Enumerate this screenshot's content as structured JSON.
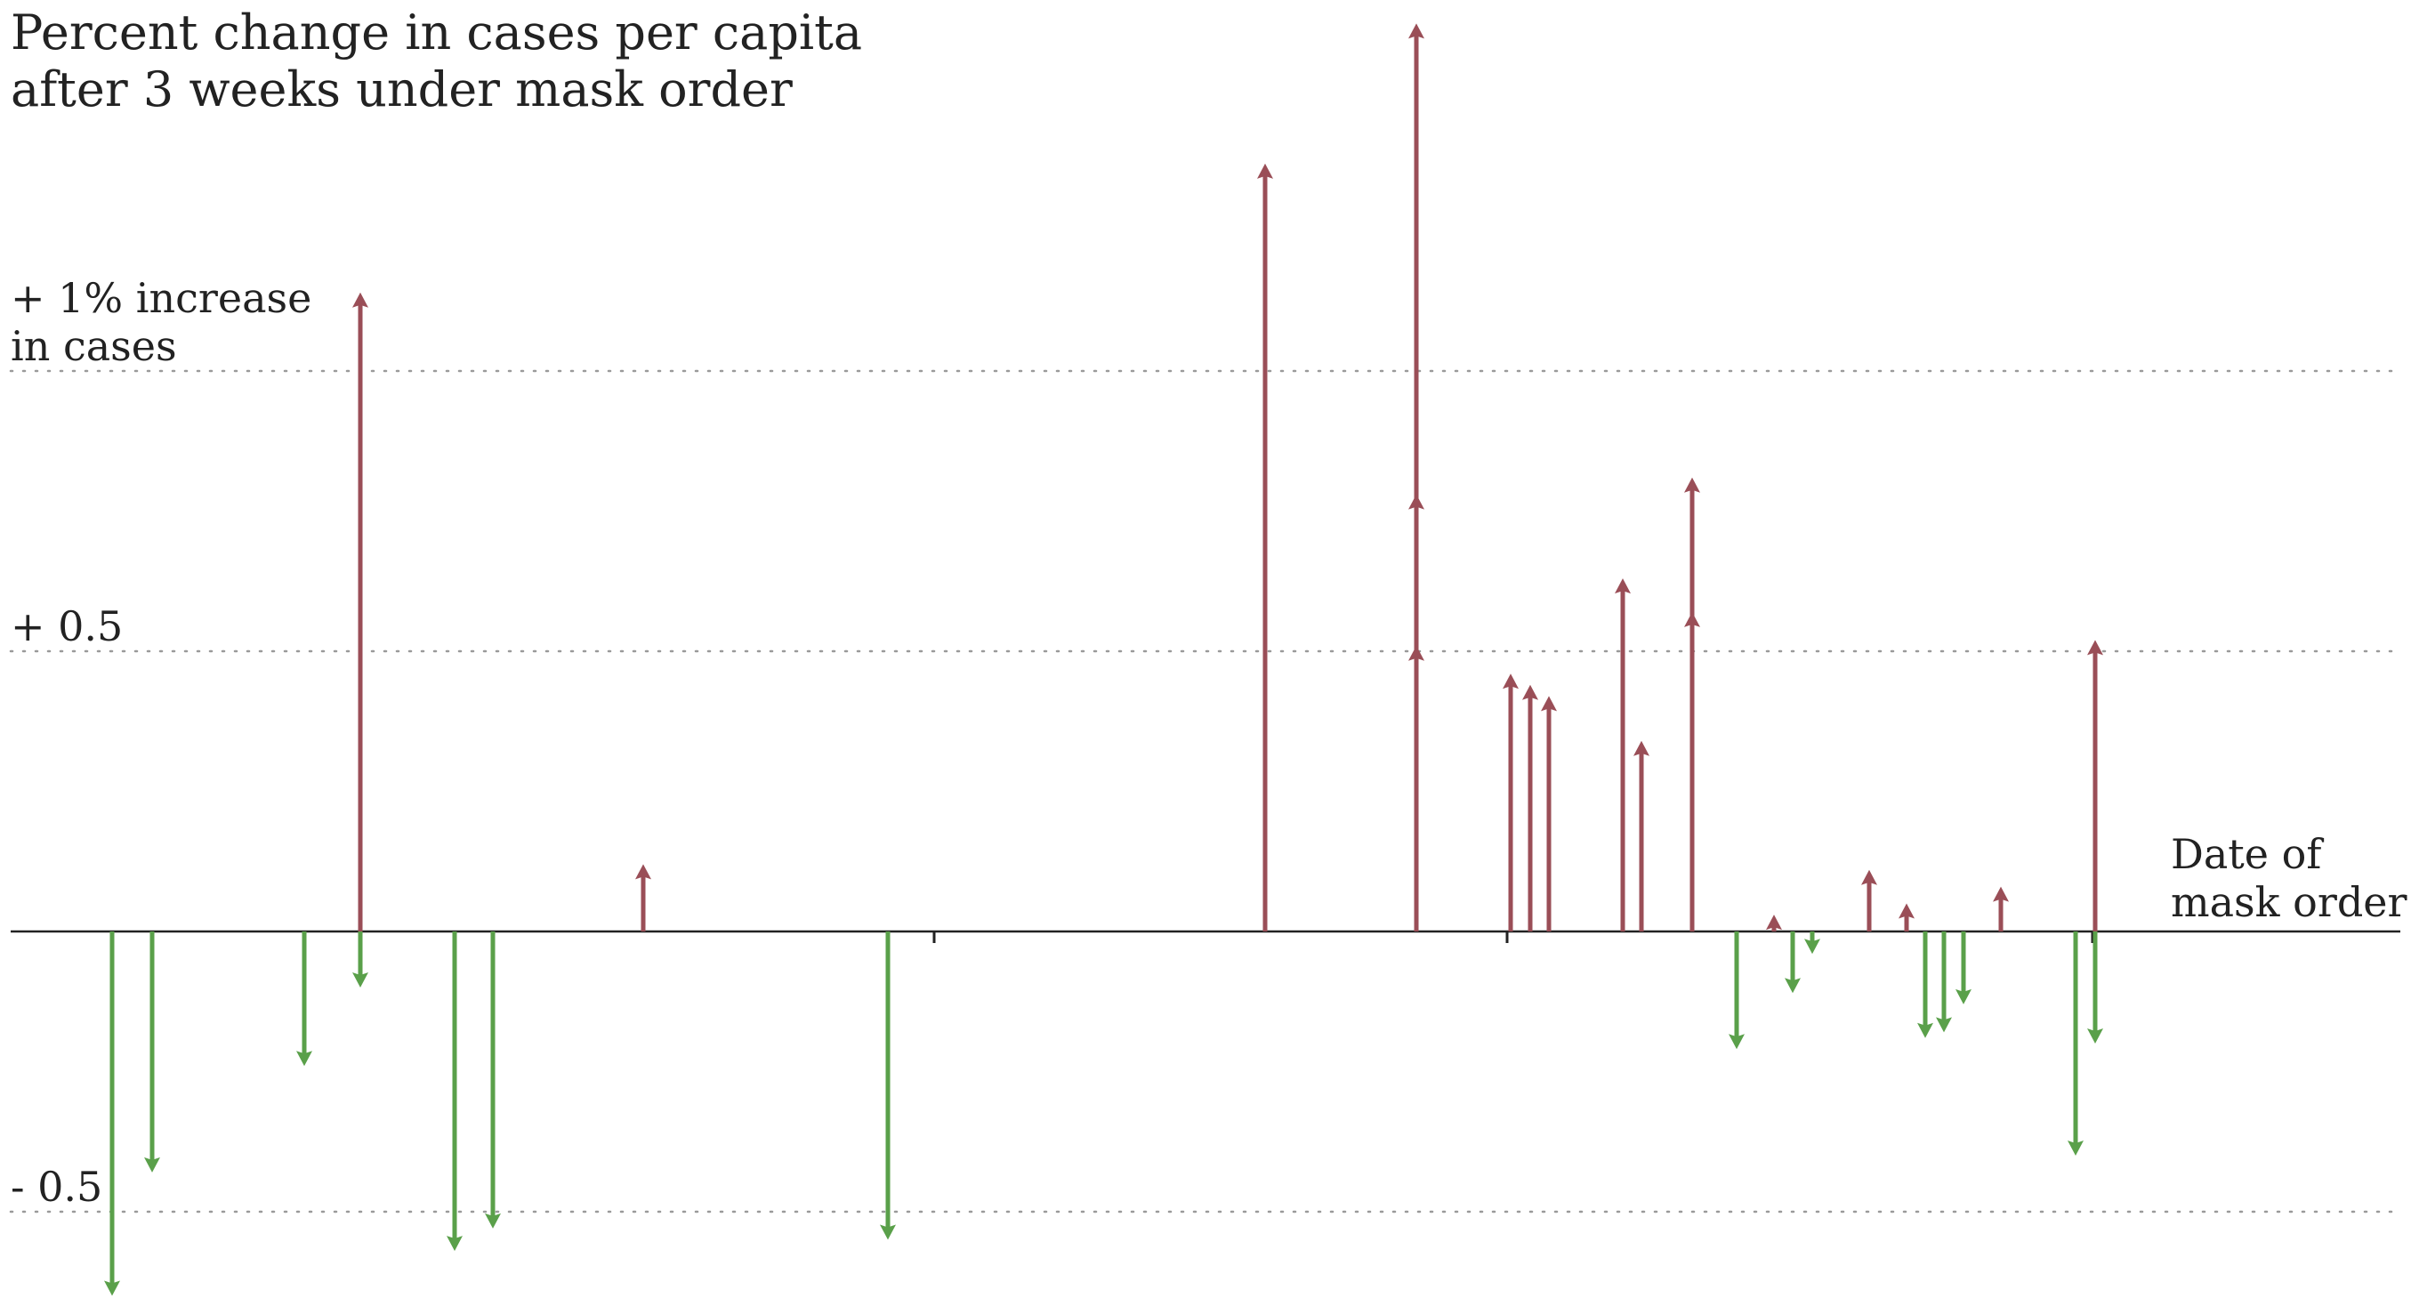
{
  "chart_data": {
    "type": "arrow",
    "title": [
      "Percent change in cases per capita",
      "after 3 weeks under mask order"
    ],
    "baseline_label": [
      "Date of",
      "mask order"
    ],
    "y_gridlines": [
      {
        "value": 1.0,
        "label": [
          "+ 1% increase",
          "in cases"
        ]
      },
      {
        "value": 0.5,
        "label": [
          "+ 0.5"
        ]
      },
      {
        "value": -0.5,
        "label": [
          "- 0.5"
        ]
      }
    ],
    "ylim": [
      -0.62,
      1.62
    ],
    "x_range": [
      0,
      2710
    ],
    "x_ticks": [
      405,
      1050,
      1694,
      2352
    ],
    "increase_color": "#9a4e57",
    "decrease_color": "#5aa04a",
    "arrows": [
      {
        "x": 126,
        "y0": 0,
        "y1": -0.65
      },
      {
        "x": 171,
        "y0": 0,
        "y1": -0.43
      },
      {
        "x": 342,
        "y0": 0,
        "y1": -0.24
      },
      {
        "x": 405,
        "y0": 0,
        "y1": 1.14
      },
      {
        "x": 405,
        "y0": 0,
        "y1": -0.1
      },
      {
        "x": 511,
        "y0": 0,
        "y1": -0.57
      },
      {
        "x": 554,
        "y0": 0,
        "y1": -0.53
      },
      {
        "x": 723,
        "y0": 0,
        "y1": 0.12
      },
      {
        "x": 998,
        "y0": 0,
        "y1": -0.55
      },
      {
        "x": 1422,
        "y0": 0,
        "y1": 1.37
      },
      {
        "x": 1592,
        "y0": 0,
        "y1": 1.62
      },
      {
        "x": 1592,
        "y0": 0,
        "y1": 0.78
      },
      {
        "x": 1592,
        "y0": 0,
        "y1": 0.51
      },
      {
        "x": 1698,
        "y0": 0,
        "y1": 0.46
      },
      {
        "x": 1720,
        "y0": 0,
        "y1": 0.44
      },
      {
        "x": 1741,
        "y0": 0,
        "y1": 0.42
      },
      {
        "x": 1824,
        "y0": 0,
        "y1": 0.63
      },
      {
        "x": 1845,
        "y0": 0,
        "y1": 0.34
      },
      {
        "x": 1902,
        "y0": 0,
        "y1": 0.81
      },
      {
        "x": 1902,
        "y0": 0,
        "y1": 0.57
      },
      {
        "x": 1952,
        "y0": 0,
        "y1": -0.21
      },
      {
        "x": 1994,
        "y0": 0,
        "y1": 0.03
      },
      {
        "x": 2015,
        "y0": 0,
        "y1": -0.11
      },
      {
        "x": 2037,
        "y0": 0,
        "y1": -0.04
      },
      {
        "x": 2101,
        "y0": 0,
        "y1": 0.11
      },
      {
        "x": 2143,
        "y0": 0,
        "y1": 0.05
      },
      {
        "x": 2164,
        "y0": 0,
        "y1": -0.19
      },
      {
        "x": 2185,
        "y0": 0,
        "y1": -0.18
      },
      {
        "x": 2207,
        "y0": 0,
        "y1": -0.13
      },
      {
        "x": 2249,
        "y0": 0,
        "y1": 0.08
      },
      {
        "x": 2333,
        "y0": 0,
        "y1": -0.4
      },
      {
        "x": 2355,
        "y0": 0,
        "y1": 0.52
      },
      {
        "x": 2355,
        "y0": 0,
        "y1": -0.2
      }
    ]
  }
}
